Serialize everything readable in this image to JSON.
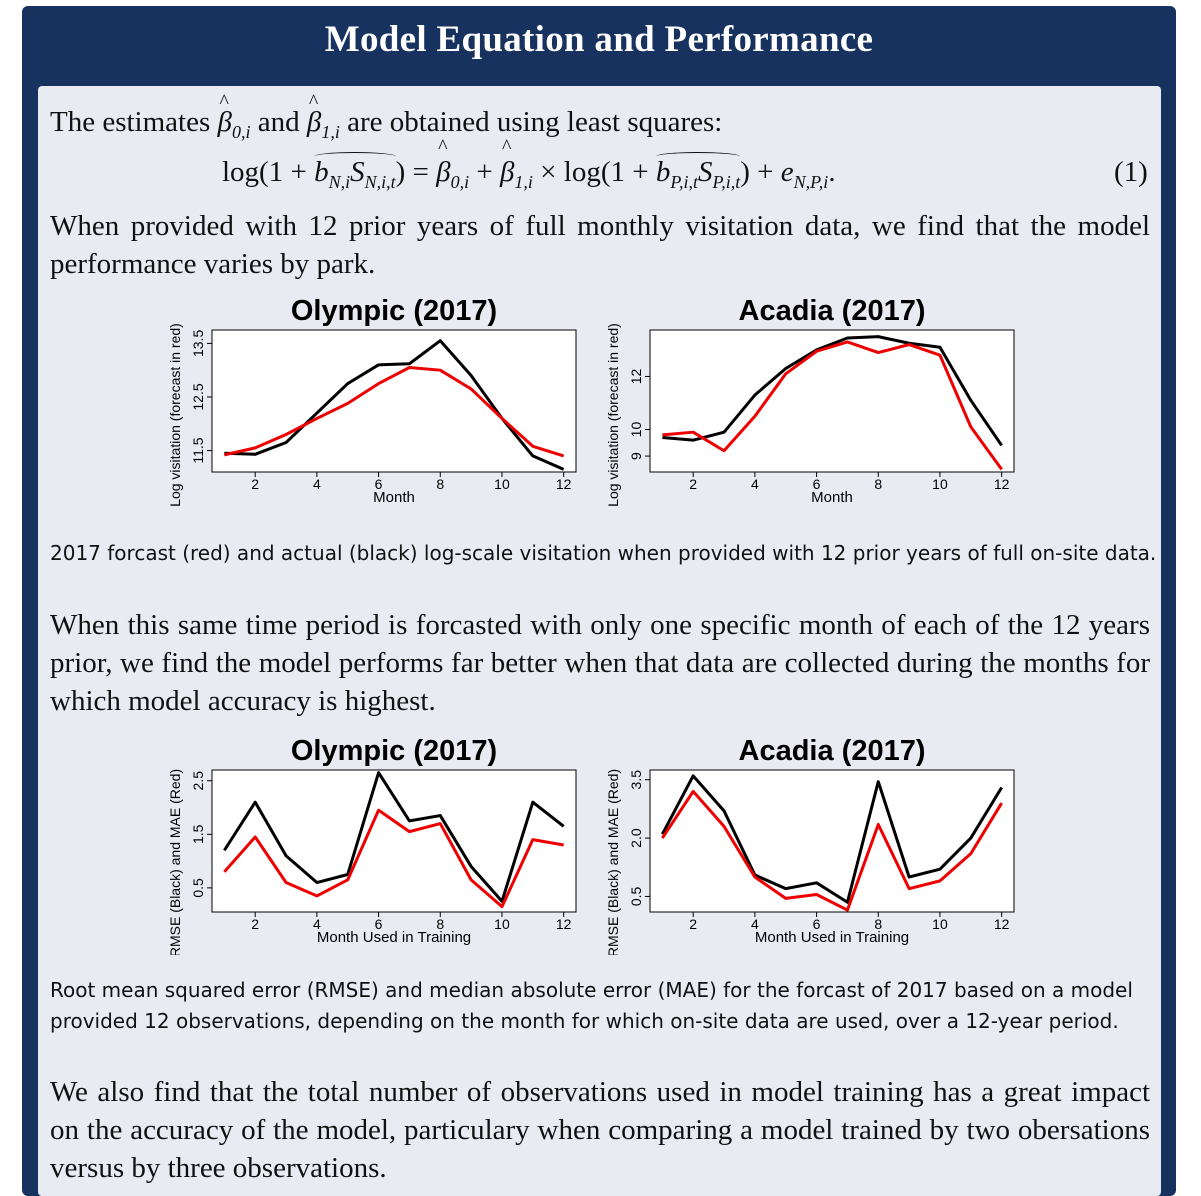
{
  "header": {
    "title": "Model Equation and Performance"
  },
  "intro": {
    "text_a": "The estimates ",
    "beta0": "β",
    "beta0_sub": "0,i",
    "text_b": " and ",
    "beta1": "β",
    "beta1_sub": "1,i",
    "text_c": " are obtained using least squares:"
  },
  "equation": {
    "lhs_open": "log(1 + ",
    "b_n": "b",
    "b_n_sub": "N,i",
    "s_n": "S",
    "s_n_sub": "N,i,t",
    "lhs_close": ") = ",
    "beta0": "β",
    "beta0_sub": "0,i",
    "plus": " + ",
    "beta1": "β",
    "beta1_sub": "1,i",
    "times": " × log(1 + ",
    "b_p": "b",
    "b_p_sub": "P,i,t",
    "s_p": "S",
    "s_p_sub": "P,i,t",
    "close": ") + ",
    "e": "e",
    "e_sub": "N,P,i",
    "end": ".",
    "number": "(1)"
  },
  "paragraph1": "When provided with 12 prior years of full monthly visitation data, we find that the model performance varies by park.",
  "caption1": "2017 forcast (red) and actual (black) log-scale visitation when provided with 12 prior years of full on-site data.",
  "paragraph2": "When this same time period is forcasted with only one specific month of each of the 12 years prior, we find the model performs far better when that data are collected during the months for which model accuracy is highest.",
  "caption2": "Root mean squared error (RMSE) and median absolute error (MAE) for the forcast of 2017 based on a model provided 12 observations, depending on the month for which on-site data are used, over a 12-year period.",
  "paragraph3": "We also find that the total number of observations used in model training has a great impact on the accuracy of the model, particulary when comparing a model trained by two obersations versus by three observations.",
  "chart_data": [
    {
      "type": "line",
      "title": "Olympic (2017)",
      "xlabel": "Month",
      "ylabel": "Log visitation (forecast in red)",
      "x": [
        1,
        2,
        3,
        4,
        5,
        6,
        7,
        8,
        9,
        10,
        11,
        12
      ],
      "xticks": [
        2,
        4,
        6,
        8,
        10,
        12
      ],
      "yticks": [
        11.5,
        12.5,
        13.5
      ],
      "xlim": [
        0.6,
        12.4
      ],
      "ylim": [
        11.1,
        13.75
      ],
      "series": [
        {
          "color": "#000000",
          "values": [
            11.45,
            11.43,
            11.65,
            12.2,
            12.75,
            13.1,
            13.12,
            13.55,
            12.9,
            12.1,
            11.4,
            11.15
          ]
        },
        {
          "color": "#ee0000",
          "values": [
            11.42,
            11.55,
            11.8,
            12.1,
            12.38,
            12.75,
            13.05,
            13.0,
            12.65,
            12.1,
            11.58,
            11.4
          ]
        }
      ]
    },
    {
      "type": "line",
      "title": "Acadia (2017)",
      "xlabel": "Month",
      "ylabel": "Log visitation (forecast in red)",
      "x": [
        1,
        2,
        3,
        4,
        5,
        6,
        7,
        8,
        9,
        10,
        11,
        12
      ],
      "xticks": [
        2,
        4,
        6,
        8,
        10,
        12
      ],
      "yticks": [
        9,
        10,
        12
      ],
      "ylabels": [
        "9",
        "10",
        "12"
      ],
      "xlim": [
        0.6,
        12.4
      ],
      "ylim": [
        8.4,
        13.75
      ],
      "series": [
        {
          "color": "#000000",
          "values": [
            9.7,
            9.6,
            9.9,
            11.3,
            12.3,
            13.0,
            13.45,
            13.5,
            13.25,
            13.1,
            11.1,
            9.4
          ]
        },
        {
          "color": "#ee0000",
          "values": [
            9.8,
            9.9,
            9.2,
            10.5,
            12.1,
            12.95,
            13.3,
            12.9,
            13.2,
            12.8,
            10.1,
            8.5
          ]
        }
      ]
    },
    {
      "type": "line",
      "title": "Olympic (2017)",
      "xlabel": "Month Used in Training",
      "ylabel": "RMSE (Black) and MAE (Red)",
      "x": [
        1,
        2,
        3,
        4,
        5,
        6,
        7,
        8,
        9,
        10,
        11,
        12
      ],
      "xticks": [
        2,
        4,
        6,
        8,
        10,
        12
      ],
      "yticks": [
        0.5,
        1.5,
        2.5
      ],
      "xlim": [
        0.6,
        12.4
      ],
      "ylim": [
        0.05,
        2.7
      ],
      "series": [
        {
          "color": "#000000",
          "values": [
            1.2,
            2.1,
            1.1,
            0.6,
            0.75,
            2.65,
            1.75,
            1.85,
            0.9,
            0.25,
            2.1,
            1.65
          ]
        },
        {
          "color": "#ee0000",
          "values": [
            0.8,
            1.45,
            0.6,
            0.35,
            0.65,
            1.95,
            1.55,
            1.7,
            0.65,
            0.15,
            1.4,
            1.3
          ]
        }
      ]
    },
    {
      "type": "line",
      "title": "Acadia (2017)",
      "xlabel": "Month Used in Training",
      "ylabel": "RMSE (Black) and MAE (Red)",
      "x": [
        1,
        2,
        3,
        4,
        5,
        6,
        7,
        8,
        9,
        10,
        11,
        12
      ],
      "xticks": [
        2,
        4,
        6,
        8,
        10,
        12
      ],
      "yticks": [
        0.5,
        2.0,
        3.5
      ],
      "ylabels": [
        "0.5",
        "2.0",
        "3.5"
      ],
      "xlim": [
        0.6,
        12.4
      ],
      "ylim": [
        0.1,
        3.75
      ],
      "series": [
        {
          "color": "#000000",
          "values": [
            2.1,
            3.6,
            2.7,
            1.05,
            0.7,
            0.85,
            0.35,
            3.45,
            1.0,
            1.2,
            2.0,
            3.3
          ]
        },
        {
          "color": "#ee0000",
          "values": [
            2.0,
            3.2,
            2.3,
            1.0,
            0.45,
            0.55,
            0.15,
            2.35,
            0.7,
            0.9,
            1.6,
            2.9
          ]
        }
      ]
    }
  ]
}
